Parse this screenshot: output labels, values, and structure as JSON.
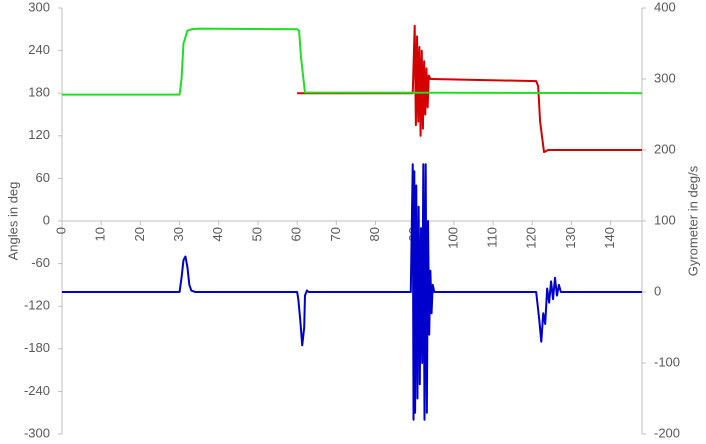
{
  "chart_data": {
    "type": "line",
    "y_label": "Angles in deg",
    "y2_label": "Gyrometer in deg/s",
    "xlim": [
      0,
      148
    ],
    "xticks": [
      0,
      10,
      20,
      30,
      40,
      50,
      60,
      70,
      80,
      90,
      100,
      110,
      120,
      130,
      140
    ],
    "ylim": [
      -300,
      300
    ],
    "yticks": [
      -300,
      -240,
      -180,
      -120,
      -60,
      0,
      60,
      120,
      180,
      240,
      300
    ],
    "y2lim": [
      -200,
      400
    ],
    "y2ticks": [
      -200,
      -100,
      0,
      100,
      200,
      300,
      400
    ],
    "series": [
      {
        "color": "#d40000",
        "x": [
          60,
          62,
          89,
          89.5,
          90,
          90.3,
          90.6,
          90.9,
          91.2,
          91.5,
          91.8,
          92.1,
          92.4,
          92.7,
          93,
          93.3,
          93.6,
          94,
          94.5,
          121,
          121.5,
          122,
          123,
          124,
          148
        ],
        "values": [
          180,
          180,
          180,
          180,
          275,
          135,
          260,
          140,
          245,
          120,
          240,
          130,
          225,
          150,
          215,
          160,
          205,
          200,
          200,
          197,
          190,
          140,
          97,
          100,
          100
        ]
      },
      {
        "color": "#22dd22",
        "x": [
          0,
          30,
          30.5,
          31,
          32,
          33,
          35,
          60,
          60.5,
          61,
          62,
          148
        ],
        "values": [
          178,
          178,
          200,
          250,
          268,
          270,
          271,
          270,
          268,
          230,
          181,
          180
        ]
      },
      {
        "color": "#0000cc",
        "axis": "y2",
        "x": [
          0,
          30,
          30.5,
          31,
          31.5,
          32,
          32.5,
          33,
          34,
          60,
          60.3,
          60.8,
          61.3,
          61.8,
          62,
          62.5,
          63,
          89,
          89.5,
          89.7,
          89.9,
          90.1,
          90.4,
          90.7,
          91,
          91.3,
          91.6,
          91.9,
          92.2,
          92.5,
          92.8,
          93.1,
          93.4,
          93.7,
          94,
          94.3,
          94.6,
          95,
          121,
          121.3,
          121.8,
          122.3,
          122.8,
          123.3,
          123.8,
          124.3,
          124.8,
          125.3,
          125.8,
          126.3,
          126.8,
          127.3,
          148
        ],
        "values": [
          0,
          0,
          20,
          45,
          50,
          35,
          10,
          2,
          0,
          0,
          -10,
          -40,
          -75,
          -50,
          -5,
          2,
          0,
          0,
          180,
          -180,
          170,
          -170,
          150,
          -150,
          120,
          -130,
          90,
          -100,
          180,
          -180,
          180,
          -170,
          100,
          -60,
          30,
          -30,
          10,
          0,
          0,
          -15,
          -40,
          -70,
          -30,
          -45,
          5,
          -15,
          15,
          -10,
          20,
          -5,
          10,
          0,
          0
        ]
      }
    ]
  }
}
